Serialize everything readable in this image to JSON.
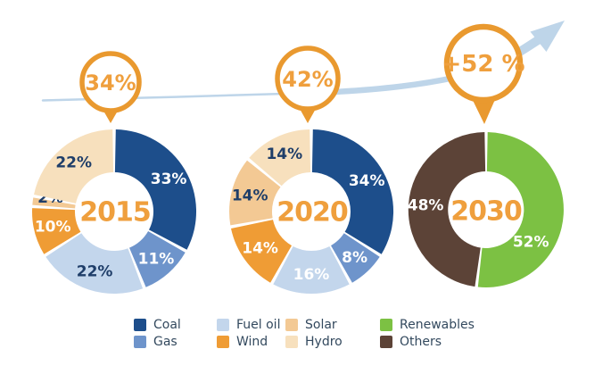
{
  "chart_data": [
    {
      "type": "pie",
      "subtype": "donut",
      "center_label": "2015",
      "marker_label": "34%",
      "slices": [
        {
          "name": "Coal",
          "value": 33,
          "label": "33%",
          "color": "#1d4e8b",
          "label_color": "#ffffff"
        },
        {
          "name": "Gas",
          "value": 11,
          "label": "11%",
          "color": "#6e94cb",
          "label_color": "#ffffff"
        },
        {
          "name": "Fuel oil",
          "value": 22,
          "label": "22%",
          "color": "#c3d6ec",
          "label_color": "#1f3e69"
        },
        {
          "name": "Wind",
          "value": 10,
          "label": "10%",
          "color": "#ef9c35",
          "label_color": "#ffffff"
        },
        {
          "name": "Solar",
          "value": 2,
          "label": "2%",
          "color": "#f3c994",
          "label_color": "#1f3e69"
        },
        {
          "name": "Hydro",
          "value": 22,
          "label": "22%",
          "color": "#f7e0bd",
          "label_color": "#1f3e69"
        }
      ]
    },
    {
      "type": "pie",
      "subtype": "donut",
      "center_label": "2020",
      "marker_label": "42%",
      "slices": [
        {
          "name": "Coal",
          "value": 34,
          "label": "34%",
          "color": "#1d4e8b",
          "label_color": "#ffffff"
        },
        {
          "name": "Gas",
          "value": 8,
          "label": "8%",
          "color": "#6e94cb",
          "label_color": "#ffffff"
        },
        {
          "name": "Fuel oil",
          "value": 16,
          "label": "16%",
          "color": "#c3d6ec",
          "label_color": "#ffffff"
        },
        {
          "name": "Wind",
          "value": 14,
          "label": "14%",
          "color": "#ef9c35",
          "label_color": "#ffffff"
        },
        {
          "name": "Solar",
          "value": 14,
          "label": "14%",
          "color": "#f3c994",
          "label_color": "#1f3e69"
        },
        {
          "name": "Hydro",
          "value": 14,
          "label": "14%",
          "color": "#f7e0bd",
          "label_color": "#1f3e69"
        }
      ]
    },
    {
      "type": "pie",
      "subtype": "donut",
      "center_label": "2030",
      "marker_label": "+52 %",
      "slices": [
        {
          "name": "Renewables",
          "value": 52,
          "label": "52%",
          "color": "#7cc143",
          "label_color": "#ffffff"
        },
        {
          "name": "Others",
          "value": 48,
          "label": "48%",
          "color": "#5c4337",
          "label_color": "#ffffff"
        }
      ]
    }
  ],
  "growth_arrow": {
    "color": "#bed5e9"
  },
  "marker_style": {
    "ring_color": "#e9992f",
    "text_color": "#ef9f3d"
  },
  "legend": {
    "columns": [
      {
        "items": [
          {
            "label": "Coal",
            "color": "#1d4e8b"
          },
          {
            "label": "Gas",
            "color": "#6e94cb"
          }
        ]
      },
      {
        "items": [
          {
            "label": "Fuel oil",
            "color": "#c3d6ec"
          },
          {
            "label": "Wind",
            "color": "#ef9c35"
          }
        ]
      },
      {
        "items": [
          {
            "label": "Solar",
            "color": "#f3c994"
          },
          {
            "label": "Hydro",
            "color": "#f7e0bd"
          }
        ]
      },
      {
        "items": [
          {
            "label": "Renewables",
            "color": "#7cc143"
          },
          {
            "label": "Others",
            "color": "#5c4337"
          }
        ]
      }
    ]
  }
}
